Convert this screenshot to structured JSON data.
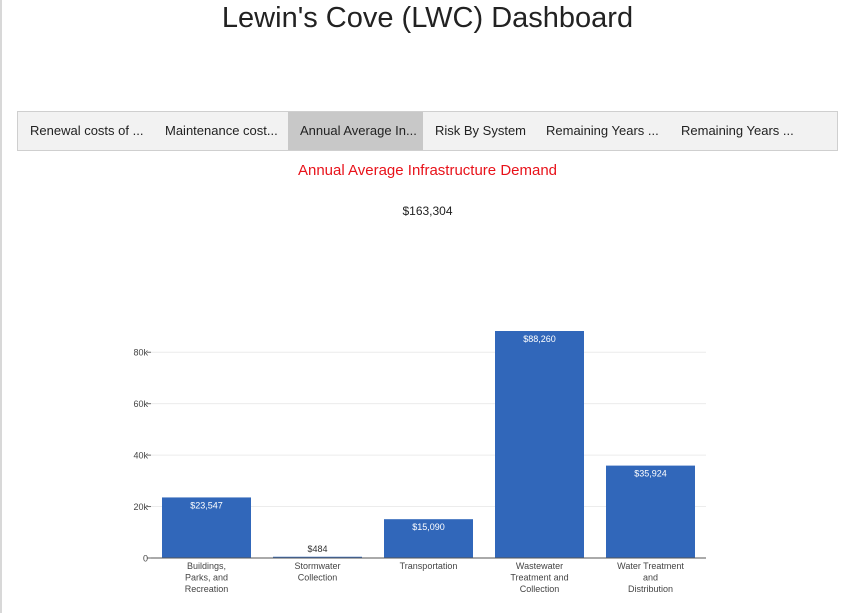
{
  "page": {
    "title": "Lewin's Cove (LWC) Dashboard"
  },
  "tabs": [
    {
      "label": "Renewal costs of ...",
      "active": false
    },
    {
      "label": "Maintenance cost...",
      "active": false
    },
    {
      "label": "Annual Average In...",
      "active": true
    },
    {
      "label": "Risk By System",
      "active": false
    },
    {
      "label": "Remaining Years ...",
      "active": false
    },
    {
      "label": "Remaining Years ...",
      "active": false
    }
  ],
  "chart_section": {
    "title": "Annual Average Infrastructure Demand",
    "total": "$163,304",
    "title_color": "#e8121a"
  },
  "chart_data": {
    "type": "bar",
    "categories": [
      [
        "Buildings,",
        "Parks, and",
        "Recreation"
      ],
      [
        "Stormwater",
        "Collection"
      ],
      [
        "Transportation"
      ],
      [
        "Wastewater",
        "Treatment and",
        "Collection"
      ],
      [
        "Water Treatment",
        "and",
        "Distribution"
      ]
    ],
    "values": [
      23547,
      484,
      15090,
      88260,
      35924
    ],
    "data_labels": [
      "$23,547",
      "$484",
      "$15,090",
      "$88,260",
      "$35,924"
    ],
    "y_ticks": [
      0,
      20000,
      40000,
      60000,
      80000
    ],
    "y_tick_labels": [
      "0",
      "20k",
      "40k",
      "60k",
      "80k"
    ],
    "ylim": [
      0,
      88260
    ],
    "grid": true,
    "bar_color": "#3167ba"
  }
}
